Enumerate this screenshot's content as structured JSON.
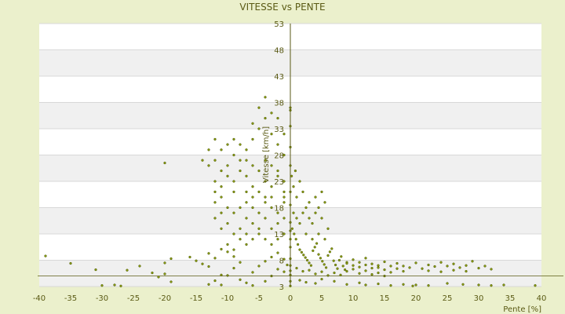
{
  "chart_data": {
    "type": "scatter",
    "title": "VITESSE vs PENTE",
    "xlabel": "Pente [%]",
    "ylabel": "Vitesse [km/h]",
    "xlim": [
      -40,
      40
    ],
    "ylim": [
      3,
      53
    ],
    "x_ticks": [
      -40,
      -35,
      -30,
      -25,
      -20,
      -15,
      -10,
      -5,
      0,
      5,
      10,
      15,
      20,
      25,
      30,
      35,
      40
    ],
    "y_ticks": [
      3,
      8,
      13,
      18,
      23,
      28,
      33,
      38,
      43,
      48,
      53
    ],
    "grid": true,
    "banded_background": true,
    "legend": "none",
    "colors": {
      "background": "#ebf0cc",
      "plot": "#ffffff",
      "band": "#f0f0f0",
      "point": "#8a9a12",
      "point_outline": "#4a5a05",
      "axis": "#5a5a14"
    },
    "series": [
      {
        "points": [
          [
            -39,
            8.8
          ],
          [
            -35,
            7.4
          ],
          [
            -31,
            6.2
          ],
          [
            -30,
            3.2
          ],
          [
            -28,
            3.3
          ],
          [
            -27,
            3.1
          ],
          [
            -26,
            6.1
          ],
          [
            -24,
            6.9
          ],
          [
            -22,
            5.6
          ],
          [
            -21,
            4.8
          ],
          [
            -20,
            5.4
          ],
          [
            -19,
            3.9
          ],
          [
            -20,
            7.5
          ],
          [
            -19,
            8.3
          ],
          [
            -20,
            26.5
          ],
          [
            -16,
            8.6
          ],
          [
            -15,
            7.9
          ],
          [
            -14,
            7.3
          ],
          [
            -13,
            6.8
          ],
          [
            -12,
            4.1
          ],
          [
            -11,
            5.2
          ],
          [
            -12,
            8.4
          ],
          [
            -13,
            9.3
          ],
          [
            -11,
            10.1
          ],
          [
            -10,
            9.6
          ],
          [
            -9,
            8.7
          ],
          [
            -8,
            7.6
          ],
          [
            -9,
            6.5
          ],
          [
            -10,
            5.1
          ],
          [
            -8,
            4.3
          ],
          [
            -7,
            3.7
          ],
          [
            -6,
            5.7
          ],
          [
            -5,
            6.9
          ],
          [
            -4,
            7.8
          ],
          [
            -3,
            8.6
          ],
          [
            -2,
            9.4
          ],
          [
            -1,
            8.2
          ],
          [
            -2,
            6.3
          ],
          [
            -3,
            5.0
          ],
          [
            -1,
            5.8
          ],
          [
            -0.5,
            7.1
          ],
          [
            -4,
            4.0
          ],
          [
            -6,
            3.2
          ],
          [
            -11,
            3.3
          ],
          [
            -13,
            3.4
          ],
          [
            -12,
            16
          ],
          [
            -11,
            14
          ],
          [
            -10,
            15
          ],
          [
            -9,
            13
          ],
          [
            -8,
            12
          ],
          [
            -7,
            11
          ],
          [
            -6,
            12
          ],
          [
            -5,
            13
          ],
          [
            -4,
            12
          ],
          [
            -3,
            11
          ],
          [
            -2,
            12
          ],
          [
            -1,
            13
          ],
          [
            -10,
            11
          ],
          [
            -9,
            10
          ],
          [
            -8,
            14
          ],
          [
            -7,
            16
          ],
          [
            -6,
            15
          ],
          [
            -5,
            14
          ],
          [
            -4,
            16
          ],
          [
            -3,
            14
          ],
          [
            -2,
            15
          ],
          [
            -1,
            16
          ],
          [
            -9,
            17
          ],
          [
            -8,
            18
          ],
          [
            -7,
            19
          ],
          [
            -6,
            18
          ],
          [
            -5,
            17
          ],
          [
            -4,
            19
          ],
          [
            -3,
            18
          ],
          [
            -2,
            17
          ],
          [
            -1,
            19
          ],
          [
            -10,
            18
          ],
          [
            -11,
            17
          ],
          [
            -12,
            19
          ],
          [
            -7,
            13
          ],
          [
            -13,
            26
          ],
          [
            -12,
            27
          ],
          [
            -11,
            25
          ],
          [
            -10,
            26
          ],
          [
            -9,
            28
          ],
          [
            -8,
            27
          ],
          [
            -7,
            29
          ],
          [
            -6,
            31
          ],
          [
            -5,
            33
          ],
          [
            -4,
            35
          ],
          [
            -3,
            32
          ],
          [
            -2,
            30
          ],
          [
            -1,
            28
          ],
          [
            -12,
            23
          ],
          [
            -11,
            22
          ],
          [
            -10,
            24
          ],
          [
            -9,
            23
          ],
          [
            -8,
            25
          ],
          [
            -7,
            24
          ],
          [
            -6,
            22
          ],
          [
            -5,
            21
          ],
          [
            -4,
            23
          ],
          [
            -3,
            22
          ],
          [
            -2,
            24
          ],
          [
            -1,
            21
          ],
          [
            -13,
            29
          ],
          [
            -12,
            31
          ],
          [
            -11,
            29
          ],
          [
            -10,
            30
          ],
          [
            -9,
            31
          ],
          [
            -8,
            30
          ],
          [
            -7,
            27
          ],
          [
            -6,
            26
          ],
          [
            -5,
            25
          ],
          [
            -4,
            27
          ],
          [
            -3,
            26
          ],
          [
            -2,
            25
          ],
          [
            -1,
            23
          ],
          [
            -14,
            27
          ],
          [
            -12,
            21
          ],
          [
            -11,
            20
          ],
          [
            -9,
            21
          ],
          [
            -7,
            21
          ],
          [
            -6,
            20
          ],
          [
            -4,
            20
          ],
          [
            -3,
            20
          ],
          [
            -1,
            20
          ],
          [
            -5,
            37
          ],
          [
            -4,
            39
          ],
          [
            -3,
            36
          ],
          [
            -2,
            35
          ],
          [
            -6,
            34
          ],
          [
            -1,
            32
          ],
          [
            0.3,
            14
          ],
          [
            0.6,
            13
          ],
          [
            0.9,
            12
          ],
          [
            1.2,
            11
          ],
          [
            1.5,
            10
          ],
          [
            1.8,
            9.5
          ],
          [
            2.1,
            9
          ],
          [
            2.4,
            8.5
          ],
          [
            2.7,
            8
          ],
          [
            3.0,
            7.5
          ],
          [
            3.3,
            7
          ],
          [
            3.6,
            9.8
          ],
          [
            3.9,
            10.5
          ],
          [
            4.2,
            11.2
          ],
          [
            4.5,
            9.1
          ],
          [
            4.8,
            8.4
          ],
          [
            5.1,
            7.8
          ],
          [
            5.4,
            7.2
          ],
          [
            5.7,
            6.6
          ],
          [
            6.0,
            8.9
          ],
          [
            6.3,
            9.6
          ],
          [
            6.6,
            10.2
          ],
          [
            6.9,
            7.9
          ],
          [
            7.2,
            7.1
          ],
          [
            7.5,
            6.4
          ],
          [
            7.8,
            8.0
          ],
          [
            8.1,
            8.7
          ],
          [
            8.4,
            6.9
          ],
          [
            8.7,
            6.2
          ],
          [
            9.0,
            7.6
          ],
          [
            0.5,
            17
          ],
          [
            1.0,
            16
          ],
          [
            1.5,
            15
          ],
          [
            2.0,
            17
          ],
          [
            2.5,
            18
          ],
          [
            3.0,
            16
          ],
          [
            3.5,
            15
          ],
          [
            4.0,
            17
          ],
          [
            4.5,
            18
          ],
          [
            5.0,
            16
          ],
          [
            5.5,
            19
          ],
          [
            6.0,
            14
          ],
          [
            1.0,
            20
          ],
          [
            2.0,
            21
          ],
          [
            0.5,
            22
          ],
          [
            1.5,
            23
          ],
          [
            0.2,
            24
          ],
          [
            0.8,
            25
          ],
          [
            3.0,
            19
          ],
          [
            4.0,
            20
          ],
          [
            5.0,
            21
          ],
          [
            2.5,
            13
          ],
          [
            3.5,
            12
          ],
          [
            4.5,
            13
          ],
          [
            5.5,
            12
          ],
          [
            1,
            6.5
          ],
          [
            2,
            5.9
          ],
          [
            3,
            6.1
          ],
          [
            4,
            5.4
          ],
          [
            5,
            5.8
          ],
          [
            6,
            5.1
          ],
          [
            7,
            5.6
          ],
          [
            8,
            5.2
          ],
          [
            9,
            5.9
          ],
          [
            10,
            6.3
          ],
          [
            11,
            6.7
          ],
          [
            12,
            7.1
          ],
          [
            13,
            6.5
          ],
          [
            14,
            7.0
          ],
          [
            15,
            6.2
          ],
          [
            16,
            5.7
          ],
          [
            17,
            6.4
          ],
          [
            18,
            6.9
          ],
          [
            10,
            8.1
          ],
          [
            11,
            7.6
          ],
          [
            12,
            8.4
          ],
          [
            13,
            7.3
          ],
          [
            14,
            6.6
          ],
          [
            15,
            7.7
          ],
          [
            16,
            6.9
          ],
          [
            17,
            7.4
          ],
          [
            18,
            5.9
          ],
          [
            19,
            6.6
          ],
          [
            11,
            5.5
          ],
          [
            13,
            5.3
          ],
          [
            15,
            5.0
          ],
          [
            9,
            7.4
          ],
          [
            10,
            7.0
          ],
          [
            12,
            6.0
          ],
          [
            14,
            5.6
          ],
          [
            1.5,
            4.2
          ],
          [
            2.5,
            3.8
          ],
          [
            4.0,
            3.6
          ],
          [
            5.0,
            4.4
          ],
          [
            7.0,
            4.0
          ],
          [
            9.0,
            3.4
          ],
          [
            11.0,
            3.7
          ],
          [
            12.0,
            3.3
          ],
          [
            14.0,
            3.5
          ],
          [
            16.0,
            3.2
          ],
          [
            18.0,
            3.4
          ],
          [
            19.5,
            3.1
          ],
          [
            20.0,
            3.3
          ],
          [
            22.0,
            3.2
          ],
          [
            25.0,
            3.6
          ],
          [
            27.5,
            3.4
          ],
          [
            30.0,
            3.3
          ],
          [
            32.0,
            3.2
          ],
          [
            34.0,
            3.3
          ],
          [
            39.0,
            3.2
          ],
          [
            20,
            7.5
          ],
          [
            21,
            6.4
          ],
          [
            22,
            7.1
          ],
          [
            23,
            6.8
          ],
          [
            24,
            7.6
          ],
          [
            25,
            6.9
          ],
          [
            26,
            7.3
          ],
          [
            27,
            6.6
          ],
          [
            28,
            7.0
          ],
          [
            29,
            7.8
          ],
          [
            30,
            6.5
          ],
          [
            31,
            6.9
          ],
          [
            32,
            6.3
          ],
          [
            22,
            6.0
          ],
          [
            24,
            5.8
          ],
          [
            26,
            6.1
          ],
          [
            28,
            5.9
          ],
          [
            0,
            3.1
          ],
          [
            0,
            4.0
          ],
          [
            0,
            5.2
          ],
          [
            0,
            6.0
          ],
          [
            0,
            7.0
          ],
          [
            0,
            8.3
          ],
          [
            0,
            10.5
          ],
          [
            0,
            12.0
          ],
          [
            0,
            13.6
          ],
          [
            0,
            15.2
          ],
          [
            0,
            18.5
          ],
          [
            0,
            21.0
          ],
          [
            0,
            26.0
          ],
          [
            0,
            29.5
          ],
          [
            0,
            33.5
          ],
          [
            0,
            36.5
          ],
          [
            0,
            37.0
          ]
        ]
      }
    ]
  }
}
